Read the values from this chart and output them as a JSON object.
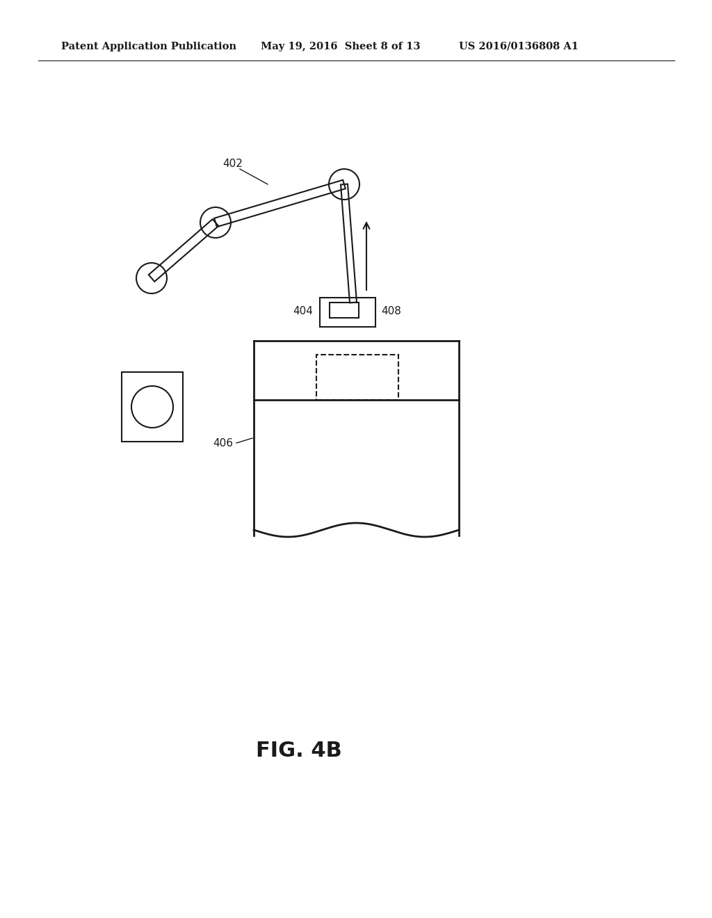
{
  "bg_color": "#ffffff",
  "line_color": "#1a1a1a",
  "header_left": "Patent Application Publication",
  "header_mid": "May 19, 2016  Sheet 8 of 13",
  "header_right": "US 2016/0136808 A1",
  "fig_label": "FIG. 4B",
  "label_402": "402",
  "label_404": "404",
  "label_406": "406",
  "label_408": "408"
}
